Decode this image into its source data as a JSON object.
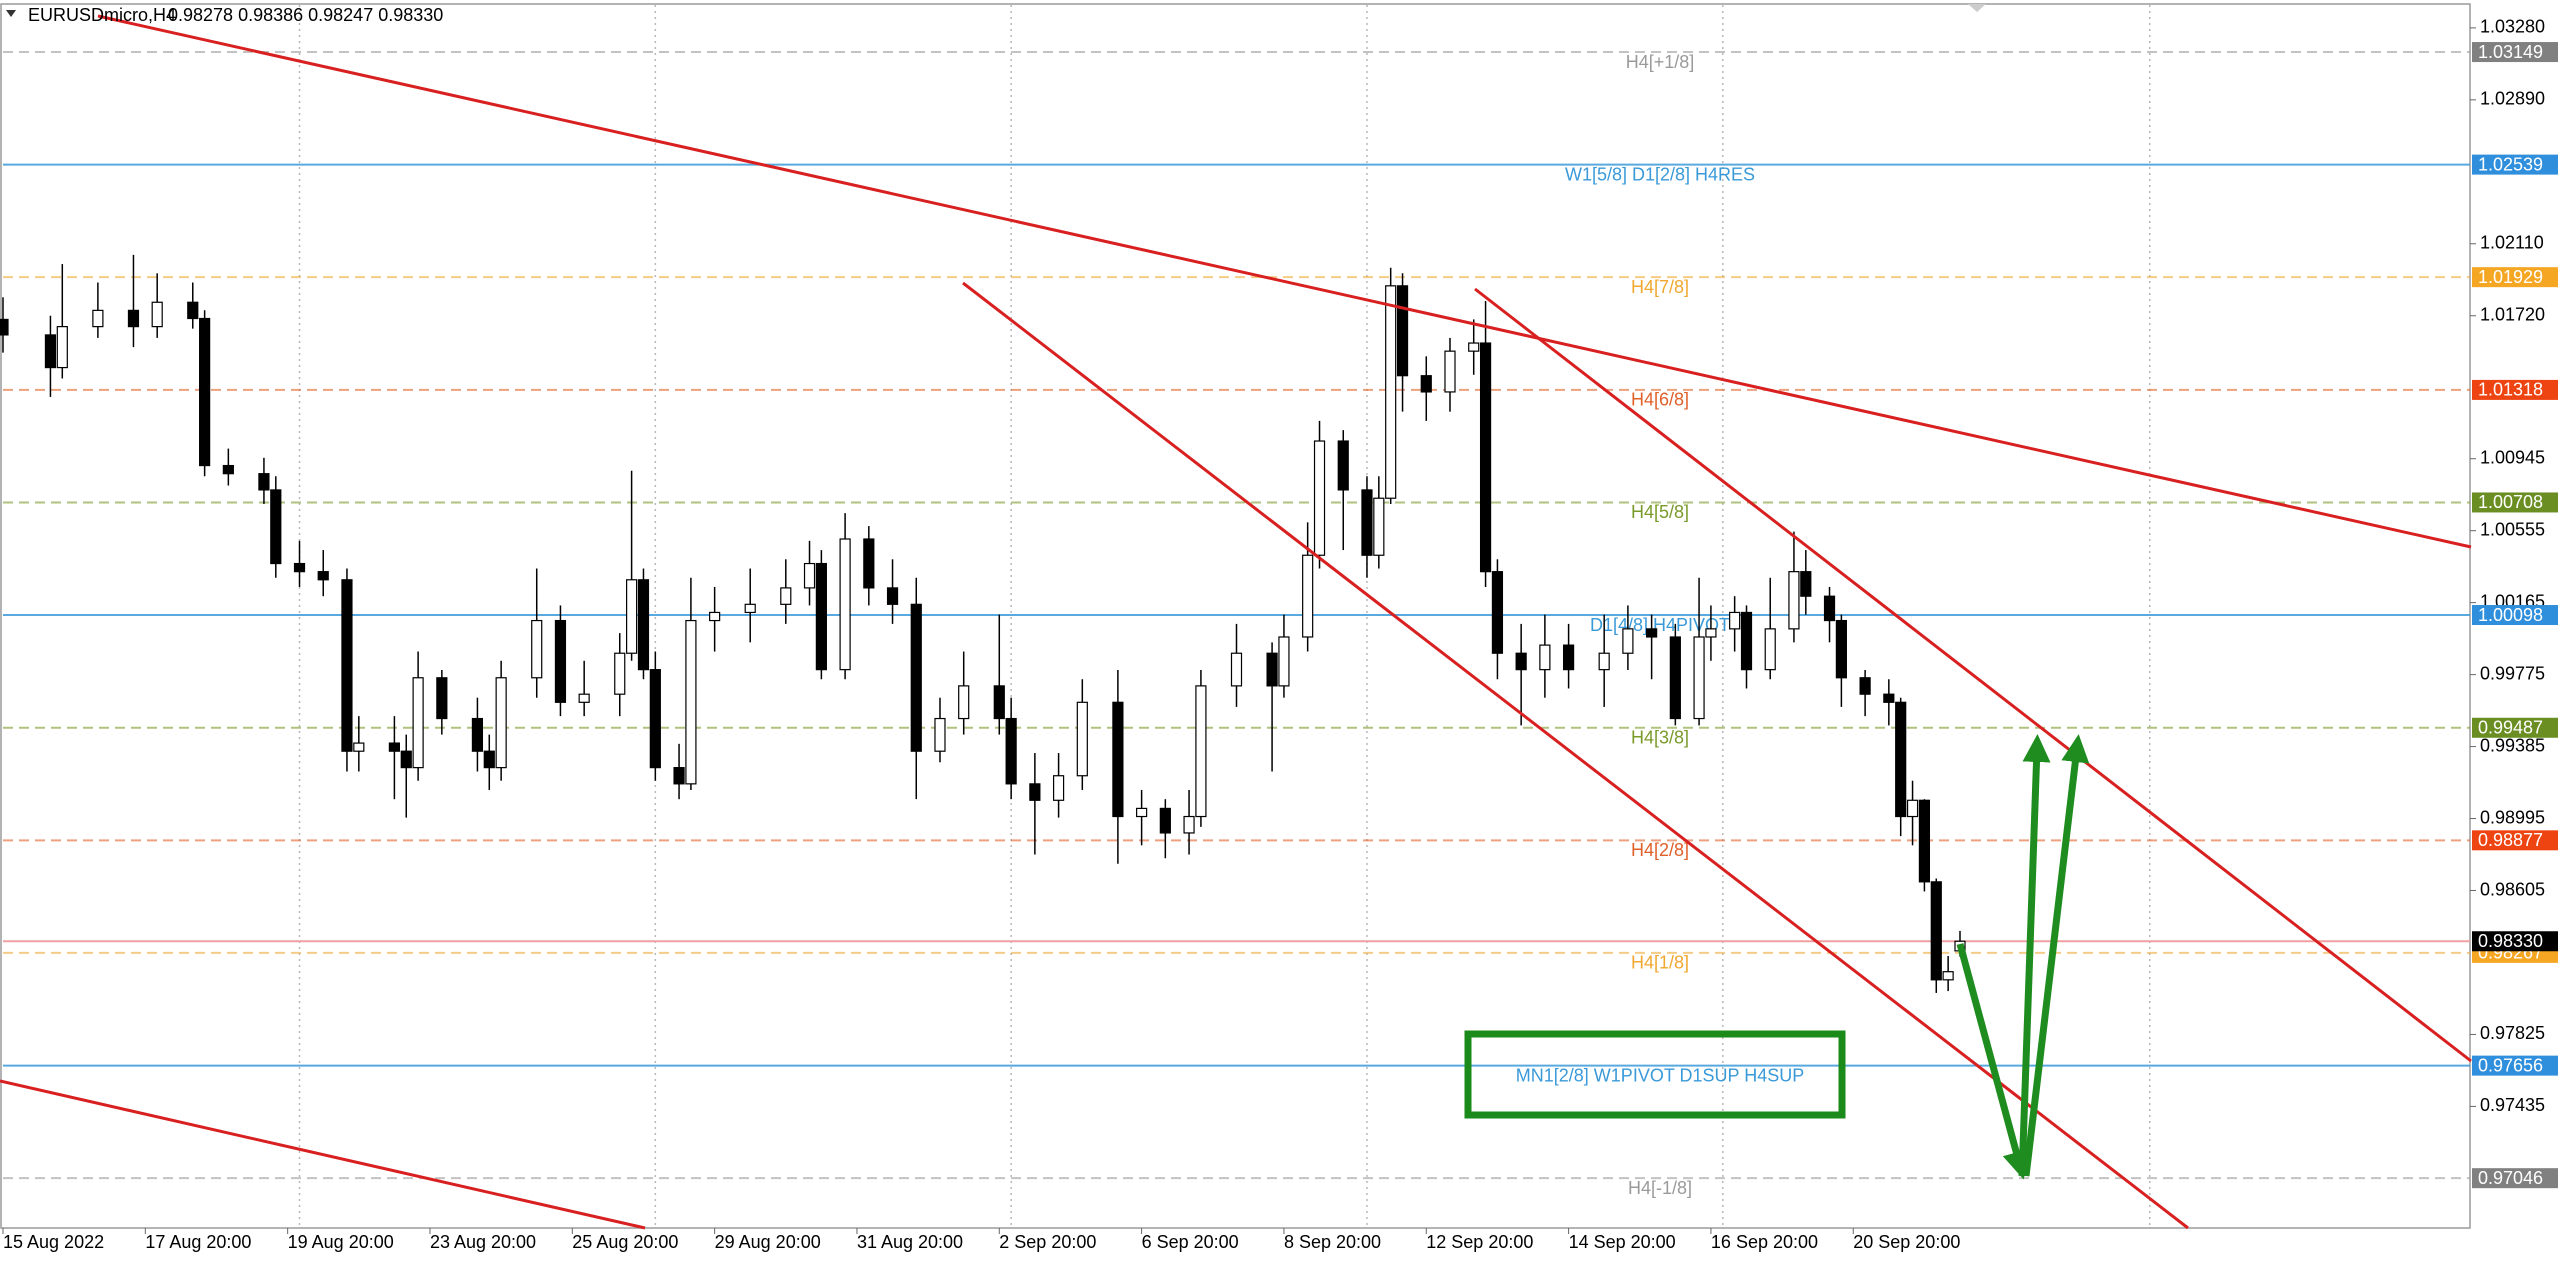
{
  "chart_data": {
    "type": "candlestick",
    "symbol": "EURUSDmicro,H4",
    "header_ohlc": "0.98278 0.98386 0.98247 0.98330",
    "xlim": [
      0,
      208
    ],
    "ylim": [
      0.96776,
      1.03404
    ],
    "xticks": [
      {
        "value": 0,
        "label": "15 Aug 2022"
      },
      {
        "value": 12,
        "label": "17 Aug 20:00"
      },
      {
        "value": 24,
        "label": "19 Aug 20:00"
      },
      {
        "value": 36,
        "label": "23 Aug 20:00"
      },
      {
        "value": 48,
        "label": "25 Aug 20:00"
      },
      {
        "value": 60,
        "label": "29 Aug 20:00"
      },
      {
        "value": 72,
        "label": "31 Aug 20:00"
      },
      {
        "value": 84,
        "label": "2 Sep 20:00"
      },
      {
        "value": 96,
        "label": "6 Sep 20:00"
      },
      {
        "value": 108,
        "label": "8 Sep 20:00"
      },
      {
        "value": 120,
        "label": "12 Sep 20:00"
      },
      {
        "value": 132,
        "label": "14 Sep 20:00"
      },
      {
        "value": 144,
        "label": "16 Sep 20:00"
      },
      {
        "value": 156,
        "label": "20 Sep 20:00"
      }
    ],
    "xgrid": [
      25,
      55,
      85,
      115,
      145,
      181
    ],
    "yticks": [
      {
        "value": 1.0328,
        "label": "1.03280"
      },
      {
        "value": 1.0289,
        "label": "1.02890"
      },
      {
        "value": 1.0211,
        "label": "1.02110"
      },
      {
        "value": 1.0172,
        "label": "1.01720"
      },
      1.00945,
      1.00555,
      1.00165,
      0.99775,
      0.99385,
      0.98995,
      0.98605,
      0.97825,
      0.97435
    ],
    "x": [
      0,
      4,
      5,
      8,
      11,
      13,
      16,
      17,
      19,
      22,
      23,
      25,
      27,
      29,
      30,
      33,
      34,
      35,
      37,
      40,
      41,
      42,
      45,
      47,
      49,
      52,
      53,
      54,
      55,
      57,
      58,
      60,
      63,
      66,
      68,
      69,
      71,
      73,
      75,
      77,
      79,
      81,
      84,
      85,
      87,
      89,
      91,
      94,
      96,
      98,
      100,
      101,
      104,
      107,
      108,
      110,
      111,
      113,
      115,
      116,
      117,
      118,
      120,
      122,
      124,
      125,
      126,
      128,
      130,
      132,
      135,
      137,
      139,
      141,
      143,
      144,
      146,
      147,
      149,
      151,
      152,
      154,
      155,
      157,
      159,
      160,
      161,
      162,
      163,
      164,
      165
    ],
    "open": [
      1.017,
      1.01616,
      1.01439,
      1.01661,
      1.01749,
      1.01661,
      1.01793,
      1.01705,
      1.00908,
      1.00864,
      1.00776,
      1.00377,
      1.00333,
      1.00289,
      0.9936,
      0.99404,
      0.9936,
      0.99271,
      0.99758,
      0.99537,
      0.9936,
      0.99271,
      0.99758,
      1.00068,
      0.99625,
      0.99669,
      0.99891,
      1.00289,
      0.99802,
      0.99271,
      0.99183,
      1.00068,
      1.00112,
      1.00156,
      1.00245,
      1.00377,
      0.99802,
      1.0051,
      1.00245,
      1.00156,
      0.9936,
      0.99537,
      0.99714,
      0.99537,
      0.99183,
      0.99094,
      0.99227,
      0.99625,
      0.99006,
      0.9905,
      0.98917,
      0.99006,
      0.99714,
      0.99891,
      0.99714,
      0.99979,
      1.00422,
      1.01041,
      1.00776,
      1.00422,
      1.00731,
      1.01882,
      1.01395,
      1.01307,
      1.01528,
      1.01572,
      1.00333,
      0.99891,
      0.99802,
      0.99935,
      0.99802,
      0.99891,
      1.00023,
      0.99979,
      0.99537,
      0.99979,
      1.00023,
      1.00112,
      0.99802,
      1.00023,
      1.00333,
      1.002,
      1.00068,
      0.99758,
      0.99669,
      0.99625,
      0.99006,
      0.99094,
      0.98652,
      0.98121,
      0.98278
    ],
    "high": [
      1.0182,
      1.0172,
      1.02,
      1.019,
      1.0205,
      1.0195,
      1.019,
      1.0175,
      1.01,
      1.0095,
      1.0085,
      1.005,
      1.0045,
      1.0035,
      0.9955,
      0.9955,
      0.9945,
      0.999,
      0.998,
      0.9965,
      0.9945,
      0.9985,
      1.0035,
      1.0015,
      0.9985,
      1.0,
      1.0088,
      1.0035,
      0.999,
      0.994,
      1.003,
      1.0025,
      1.0035,
      1.004,
      1.005,
      1.0045,
      1.0065,
      1.0058,
      1.004,
      1.003,
      0.9965,
      0.999,
      1.001,
      0.9965,
      0.9935,
      0.9935,
      0.9975,
      0.998,
      0.9915,
      0.991,
      0.9915,
      0.998,
      1.0005,
      0.9995,
      1.001,
      1.006,
      1.0115,
      1.011,
      1.0085,
      1.0085,
      1.0198,
      1.0195,
      1.015,
      1.016,
      1.017,
      1.018,
      1.004,
      1.0005,
      1.001,
      1.0005,
      1.001,
      1.0015,
      1.001,
      1.0005,
      1.003,
      1.0015,
      1.002,
      1.0015,
      1.003,
      1.0055,
      1.0045,
      1.0025,
      1.001,
      0.998,
      0.9975,
      0.9965,
      0.992,
      0.991,
      0.9867,
      0.9825,
      0.98386
    ],
    "low": [
      1.0152,
      1.0128,
      1.0138,
      1.016,
      1.0155,
      1.016,
      1.0165,
      1.0085,
      1.008,
      1.007,
      1.003,
      1.0025,
      1.002,
      0.9925,
      0.9925,
      0.991,
      0.99,
      0.992,
      0.9945,
      0.9925,
      0.9915,
      0.992,
      0.9965,
      0.9955,
      0.9955,
      0.9955,
      0.9985,
      0.9975,
      0.992,
      0.991,
      0.9915,
      0.999,
      0.9995,
      1.0005,
      1.0015,
      0.9975,
      0.9975,
      1.0015,
      1.0005,
      0.991,
      0.993,
      0.9945,
      0.9945,
      0.991,
      0.988,
      0.99,
      0.9915,
      0.9875,
      0.9885,
      0.9878,
      0.988,
      0.9895,
      0.996,
      0.9925,
      0.9965,
      0.999,
      1.0035,
      1.0045,
      1.003,
      1.0035,
      1.007,
      1.012,
      1.0115,
      1.012,
      1.014,
      1.0025,
      0.9975,
      0.995,
      0.9965,
      0.997,
      0.996,
      0.998,
      0.9975,
      0.995,
      0.995,
      0.9985,
      0.999,
      0.997,
      0.9975,
      0.9995,
      1.001,
      0.9995,
      0.996,
      0.9955,
      0.995,
      0.989,
      0.9885,
      0.986,
      0.9805,
      0.9806,
      0.98247
    ],
    "close": [
      1.01616,
      1.01439,
      1.01661,
      1.01749,
      1.01661,
      1.01793,
      1.01705,
      1.00908,
      1.00864,
      1.00776,
      1.00377,
      1.00333,
      1.00289,
      0.9936,
      0.99404,
      0.9936,
      0.99271,
      0.99758,
      0.99537,
      0.9936,
      0.99271,
      0.99758,
      1.00068,
      0.99625,
      0.99669,
      0.99891,
      1.00289,
      0.99802,
      0.99271,
      0.99183,
      1.00068,
      1.00112,
      1.00156,
      1.00245,
      1.00377,
      0.99802,
      1.0051,
      1.00245,
      1.00156,
      0.9936,
      0.99537,
      0.99714,
      0.99537,
      0.99183,
      0.99094,
      0.99227,
      0.99625,
      0.99006,
      0.9905,
      0.98917,
      0.99006,
      0.99714,
      0.99891,
      0.99714,
      0.99979,
      1.00422,
      1.01041,
      1.00776,
      1.00422,
      1.00731,
      1.01882,
      1.01395,
      1.01307,
      1.01528,
      1.01572,
      1.00333,
      0.99891,
      0.99802,
      0.99935,
      0.99802,
      0.99891,
      1.00023,
      0.99979,
      0.99537,
      0.99979,
      1.00023,
      1.00112,
      0.99802,
      1.00023,
      1.00333,
      1.002,
      1.00068,
      0.99758,
      0.99669,
      0.99625,
      0.99006,
      0.99094,
      0.98652,
      0.98121,
      0.98165,
      0.9833
    ],
    "levels": [
      {
        "name": "H4[+1/8]",
        "value": 1.03149,
        "color": "#9a9a9a",
        "axis_color": "#808080",
        "style": "dashed"
      },
      {
        "name": "W1[5/8] D1[2/8] H4RES",
        "value": 1.02539,
        "color": "#3a9ad9",
        "axis_color": "#2f8fdc",
        "style": "solid"
      },
      {
        "name": "H4[7/8]",
        "value": 1.01929,
        "color": "#f0a830",
        "axis_color": "#f5a623",
        "style": "dashed"
      },
      {
        "name": "H4[6/8]",
        "value": 1.01318,
        "color": "#e0602a",
        "axis_color": "#ee4411",
        "style": "dashed"
      },
      {
        "name": "H4[5/8]",
        "value": 1.00708,
        "color": "#7a9a2a",
        "axis_color": "#6b8e23",
        "style": "dashed"
      },
      {
        "name": "D1[4/8] H4PIVOT",
        "value": 1.00098,
        "color": "#3a9ad9",
        "axis_color": "#2f8fdc",
        "style": "solid"
      },
      {
        "name": "H4[3/8]",
        "value": 0.99487,
        "color": "#7a9a2a",
        "axis_color": "#6b8e23",
        "style": "dashed"
      },
      {
        "name": "H4[2/8]",
        "value": 0.98877,
        "color": "#e0602a",
        "axis_color": "#ee4411",
        "style": "dashed"
      },
      {
        "name": "H4[1/8]",
        "value": 0.98267,
        "color": "#f0a830",
        "axis_color": "#f5a623",
        "style": "dashed"
      },
      {
        "name": "MN1[2/8] W1PIVOT D1SUP H4SUP",
        "value": 0.97656,
        "color": "#3a9ad9",
        "axis_color": "#2f8fdc",
        "style": "solid"
      },
      {
        "name": "H4[-1/8]",
        "value": 0.97046,
        "color": "#9a9a9a",
        "axis_color": "#808080",
        "style": "dashed"
      }
    ],
    "current_price": {
      "value": 0.9833,
      "label": "0.98330",
      "color": "#f0a0a0",
      "axis_color": "#000000"
    }
  }
}
